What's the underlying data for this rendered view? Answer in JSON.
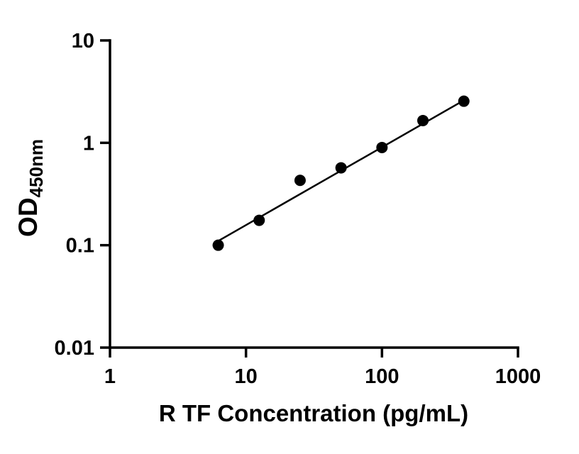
{
  "figure": {
    "background": "#ffffff",
    "ink_color": "#000000"
  },
  "chart_data": {
    "type": "scatter",
    "title": "",
    "xlabel": "R TF Concentration (pg/mL)",
    "ylabel": "OD",
    "ylabel_subscript": "450nm",
    "x_scale": "log",
    "y_scale": "log",
    "xlim": [
      1,
      1000
    ],
    "ylim": [
      0.01,
      10
    ],
    "x_ticks": [
      1,
      10,
      100,
      1000
    ],
    "x_tick_labels": [
      "1",
      "10",
      "100",
      "1000"
    ],
    "y_ticks": [
      10,
      1,
      0.1,
      0.01
    ],
    "y_tick_labels": [
      "10",
      "1",
      "0.1",
      "0.01"
    ],
    "points": {
      "x": [
        6.25,
        12.5,
        25,
        50,
        100,
        200,
        400
      ],
      "y": [
        0.1,
        0.175,
        0.43,
        0.57,
        0.9,
        1.65,
        2.55
      ]
    },
    "fit_line": {
      "x": [
        6.25,
        400
      ],
      "y": [
        0.11,
        2.6
      ]
    },
    "marker": {
      "shape": "circle",
      "color": "#000000",
      "radius_px": 8
    },
    "line_color": "#000000",
    "grid": false,
    "legend": false
  }
}
